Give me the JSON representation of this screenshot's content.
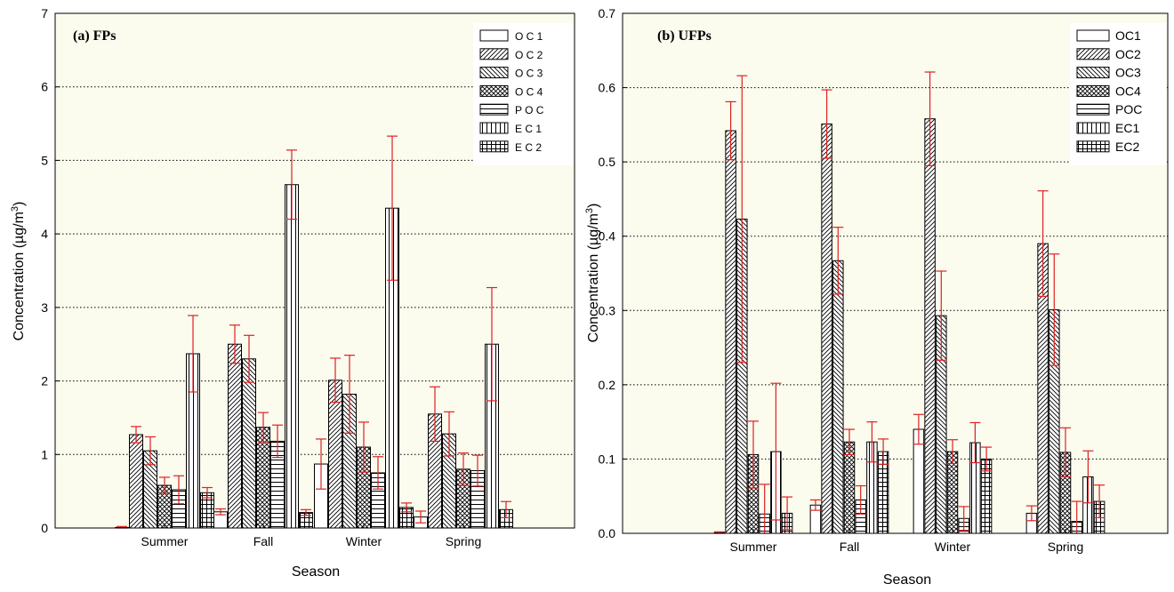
{
  "colors": {
    "plot_bg": "#fbfbee",
    "error_bar": "#dd2222",
    "bar_stroke": "#000000",
    "bar_fill": "#ffffff"
  },
  "chart_data": [
    {
      "type": "bar",
      "title": "(a) FPs",
      "xlabel": "Season",
      "ylabel": "Concentration (µg/m³)",
      "ylabel_main": "Concentration (µg/m",
      "ylabel_sup": "3",
      "ylabel_end": ")",
      "ylim": [
        0,
        7
      ],
      "yticks": [
        "0",
        "1",
        "2",
        "3",
        "4",
        "5",
        "6",
        "7"
      ],
      "categories": [
        "Summer",
        "Fall",
        "Winter",
        "Spring"
      ],
      "grid": true,
      "legend_position": "top-right",
      "legend_labels": [
        "O C 1",
        "O C 2",
        "O C 3",
        "O C 4",
        "P O C",
        "E C 1",
        "E C 2"
      ],
      "series": [
        {
          "name": "OC1",
          "pattern": "blank",
          "values": [
            0.0,
            0.22,
            0.87,
            0.15
          ],
          "errors": [
            0.02,
            0.04,
            0.34,
            0.08
          ]
        },
        {
          "name": "OC2",
          "pattern": "fwd",
          "values": [
            1.27,
            2.5,
            2.01,
            1.55
          ],
          "errors": [
            0.11,
            0.26,
            0.3,
            0.37
          ]
        },
        {
          "name": "OC3",
          "pattern": "bwd",
          "values": [
            1.05,
            2.3,
            1.82,
            1.28
          ],
          "errors": [
            0.19,
            0.32,
            0.53,
            0.3
          ]
        },
        {
          "name": "OC4",
          "pattern": "cross",
          "values": [
            0.58,
            1.37,
            1.1,
            0.8
          ],
          "errors": [
            0.11,
            0.2,
            0.34,
            0.22
          ]
        },
        {
          "name": "POC",
          "pattern": "horiz",
          "values": [
            0.52,
            1.18,
            0.75,
            0.78
          ],
          "errors": [
            0.19,
            0.22,
            0.22,
            0.21
          ]
        },
        {
          "name": "EC1",
          "pattern": "vert",
          "values": [
            2.37,
            4.67,
            4.35,
            2.5
          ],
          "errors": [
            0.52,
            0.47,
            0.98,
            0.77
          ]
        },
        {
          "name": "EC2",
          "pattern": "grid",
          "values": [
            0.48,
            0.21,
            0.28,
            0.25
          ],
          "errors": [
            0.07,
            0.04,
            0.06,
            0.11
          ]
        }
      ]
    },
    {
      "type": "bar",
      "title": "(b) UFPs",
      "xlabel": "Season",
      "ylabel": "Concentration (µg/m³)",
      "ylabel_main": "Concentration (µg/m",
      "ylabel_sup": "3",
      "ylabel_end": ")",
      "ylim": [
        0,
        0.7
      ],
      "yticks": [
        "0.0",
        "0.1",
        "0.2",
        "0.3",
        "0.4",
        "0.5",
        "0.6",
        "0.7"
      ],
      "categories": [
        "Summer",
        "Fall",
        "Winter",
        "Spring"
      ],
      "grid": true,
      "legend_position": "top-right",
      "legend_labels": [
        "OC1",
        "OC2",
        "OC3",
        "OC4",
        "POC",
        "EC1",
        "EC2"
      ],
      "series": [
        {
          "name": "OC1",
          "pattern": "blank",
          "values": [
            0.0,
            0.038,
            0.14,
            0.027
          ],
          "errors": [
            0.002,
            0.007,
            0.02,
            0.01
          ]
        },
        {
          "name": "OC2",
          "pattern": "fwd",
          "values": [
            0.542,
            0.551,
            0.558,
            0.39
          ],
          "errors": [
            0.039,
            0.046,
            0.063,
            0.071
          ]
        },
        {
          "name": "OC3",
          "pattern": "bwd",
          "values": [
            0.423,
            0.367,
            0.293,
            0.301
          ],
          "errors": [
            0.193,
            0.045,
            0.06,
            0.075
          ]
        },
        {
          "name": "OC4",
          "pattern": "cross",
          "values": [
            0.106,
            0.123,
            0.11,
            0.109
          ],
          "errors": [
            0.045,
            0.017,
            0.016,
            0.033
          ]
        },
        {
          "name": "POC",
          "pattern": "horiz",
          "values": [
            0.026,
            0.045,
            0.02,
            0.016
          ],
          "errors": [
            0.04,
            0.019,
            0.016,
            0.027
          ]
        },
        {
          "name": "EC1",
          "pattern": "vert",
          "values": [
            0.11,
            0.123,
            0.122,
            0.076
          ],
          "errors": [
            0.092,
            0.027,
            0.027,
            0.035
          ]
        },
        {
          "name": "EC2",
          "pattern": "grid",
          "values": [
            0.027,
            0.11,
            0.1,
            0.043
          ],
          "errors": [
            0.022,
            0.017,
            0.016,
            0.022
          ]
        }
      ]
    }
  ]
}
